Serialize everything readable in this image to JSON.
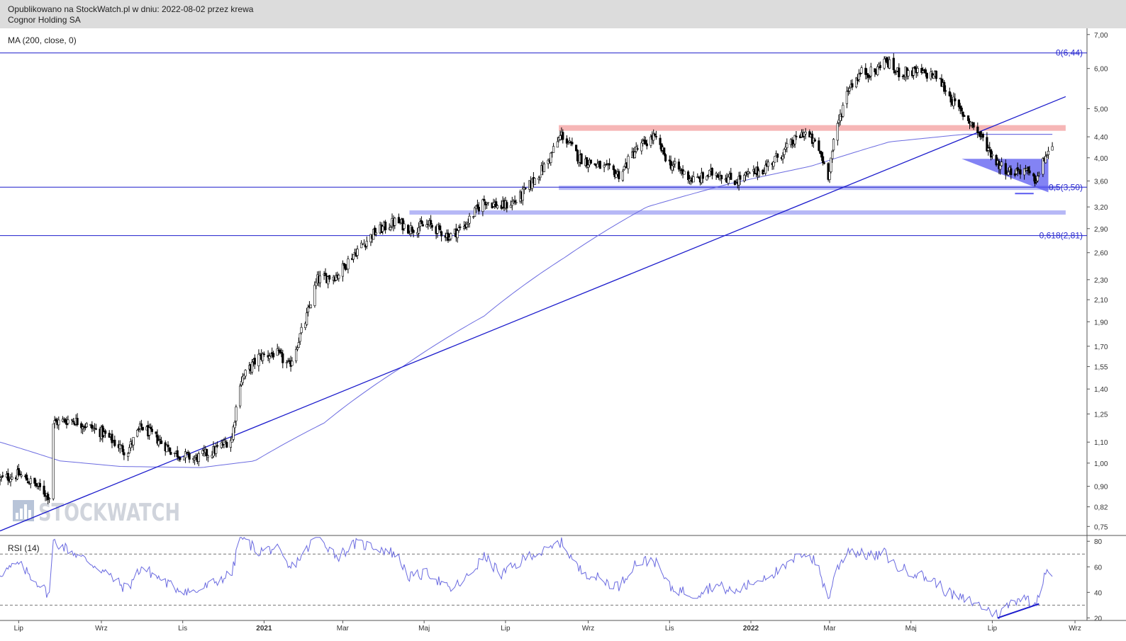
{
  "header": {
    "published": "Opublikowano na StockWatch.pl w dniu: 2022-08-02 przez krewa",
    "company": "Cognor Holding SA"
  },
  "watermark": "STOCKWATCH",
  "colors": {
    "candles": "#000000",
    "ma": "#6b6be0",
    "trend": "#1c1ccc",
    "fib": "#1c1ccc",
    "resistance_band": "#f4a9a9",
    "support_band": "#a9acf4",
    "triangle": "#5a5af0",
    "rsi": "#6b6be0"
  },
  "chart_data": [
    {
      "type": "candlestick",
      "title": "",
      "indicator_label": "MA (200, close, 0)",
      "y_scale": "log",
      "ylim": [
        0.72,
        7.2
      ],
      "y_ticks": [
        "7,00",
        "6,00",
        "5,00",
        "4,40",
        "4,00",
        "3,60",
        "3,20",
        "2,90",
        "2,60",
        "2,30",
        "2,10",
        "1,90",
        "1,70",
        "1,55",
        "1,40",
        "1,25",
        "1,10",
        "1,00",
        "0,90",
        "0,82",
        "0,75"
      ],
      "x_ticks": [
        "Lip",
        "Wrz",
        "Lis",
        "2021",
        "Mar",
        "Maj",
        "Lip",
        "Wrz",
        "Lis",
        "2022",
        "Mar",
        "Maj",
        "Lip",
        "Wrz"
      ],
      "x_range": [
        "2020-06-17",
        "2022-09-10"
      ],
      "price_anchors": [
        [
          "2020-06-17",
          0.93
        ],
        [
          "2020-07-01",
          0.95
        ],
        [
          "2020-07-15",
          0.9
        ],
        [
          "2020-07-24",
          0.86
        ],
        [
          "2020-07-27",
          1.2
        ],
        [
          "2020-08-10",
          1.22
        ],
        [
          "2020-09-01",
          1.15
        ],
        [
          "2020-09-20",
          1.05
        ],
        [
          "2020-10-01",
          1.18
        ],
        [
          "2020-10-25",
          1.05
        ],
        [
          "2020-11-10",
          1.02
        ],
        [
          "2020-11-25",
          1.06
        ],
        [
          "2020-12-08",
          1.12
        ],
        [
          "2020-12-14",
          1.45
        ],
        [
          "2020-12-28",
          1.62
        ],
        [
          "2021-01-10",
          1.65
        ],
        [
          "2021-01-20",
          1.55
        ],
        [
          "2021-02-01",
          1.9
        ],
        [
          "2021-02-10",
          2.3
        ],
        [
          "2021-02-25",
          2.35
        ],
        [
          "2021-03-10",
          2.6
        ],
        [
          "2021-03-25",
          2.85
        ],
        [
          "2021-04-10",
          3.0
        ],
        [
          "2021-04-20",
          2.9
        ],
        [
          "2021-05-05",
          2.95
        ],
        [
          "2021-05-20",
          2.8
        ],
        [
          "2021-06-01",
          2.95
        ],
        [
          "2021-06-15",
          3.3
        ],
        [
          "2021-06-28",
          3.2
        ],
        [
          "2021-07-10",
          3.3
        ],
        [
          "2021-07-20",
          3.55
        ],
        [
          "2021-08-01",
          3.9
        ],
        [
          "2021-08-12",
          4.45
        ],
        [
          "2021-08-25",
          4.0
        ],
        [
          "2021-09-15",
          3.8
        ],
        [
          "2021-09-25",
          3.7
        ],
        [
          "2021-10-05",
          4.1
        ],
        [
          "2021-10-20",
          4.4
        ],
        [
          "2021-11-01",
          3.9
        ],
        [
          "2021-11-20",
          3.6
        ],
        [
          "2021-12-05",
          3.75
        ],
        [
          "2021-12-20",
          3.6
        ],
        [
          "2022-01-10",
          3.8
        ],
        [
          "2022-01-25",
          4.1
        ],
        [
          "2022-02-10",
          4.5
        ],
        [
          "2022-02-20",
          4.2
        ],
        [
          "2022-02-28",
          3.7
        ],
        [
          "2022-03-05",
          4.4
        ],
        [
          "2022-03-15",
          5.5
        ],
        [
          "2022-03-25",
          5.9
        ],
        [
          "2022-04-05",
          5.9
        ],
        [
          "2022-04-10",
          6.3
        ],
        [
          "2022-04-20",
          5.9
        ],
        [
          "2022-05-05",
          5.9
        ],
        [
          "2022-05-20",
          5.8
        ],
        [
          "2022-05-28",
          5.4
        ],
        [
          "2022-06-05",
          5.0
        ],
        [
          "2022-06-15",
          4.7
        ],
        [
          "2022-06-25",
          4.3
        ],
        [
          "2022-07-05",
          3.9
        ],
        [
          "2022-07-15",
          3.75
        ],
        [
          "2022-07-25",
          3.8
        ],
        [
          "2022-08-01",
          3.6
        ],
        [
          "2022-08-05",
          3.7
        ],
        [
          "2022-08-10",
          4.05
        ],
        [
          "2022-08-15",
          4.15
        ]
      ],
      "ma200_anchors": [
        [
          "2020-06-17",
          1.1
        ],
        [
          "2020-08-01",
          1.01
        ],
        [
          "2020-09-15",
          0.985
        ],
        [
          "2020-11-15",
          0.98
        ],
        [
          "2020-12-25",
          1.01
        ],
        [
          "2021-02-15",
          1.2
        ],
        [
          "2021-04-15",
          1.55
        ],
        [
          "2021-06-15",
          1.95
        ],
        [
          "2021-08-15",
          2.55
        ],
        [
          "2021-10-15",
          3.2
        ],
        [
          "2021-12-15",
          3.55
        ],
        [
          "2022-02-15",
          3.85
        ],
        [
          "2022-04-15",
          4.3
        ],
        [
          "2022-06-10",
          4.45
        ],
        [
          "2022-08-15",
          4.45
        ]
      ],
      "horizontal_lines": [
        {
          "label": "0(6,44)",
          "value": 6.44
        },
        {
          "label": "0,5(3,50)",
          "value": 3.5
        },
        {
          "label": "0,618(2,81)",
          "value": 2.81
        }
      ],
      "resistance_zone": {
        "from": "2021-08-10",
        "to": "2022-08-25",
        "value": 4.58
      },
      "support_zones": [
        {
          "from": "2021-08-10",
          "to": "2022-08-20",
          "value": 3.49
        },
        {
          "from": "2021-04-20",
          "to": "2022-08-25",
          "value": 3.12
        }
      ],
      "trendline": {
        "start": [
          "2020-06-17",
          0.735
        ],
        "end": [
          "2022-08-25",
          5.28
        ]
      },
      "ma_level_line": {
        "from": "2022-06-12",
        "to": "2022-08-15",
        "value": 4.45
      },
      "triangle": {
        "points": [
          [
            "2022-06-08",
            3.98
          ],
          [
            "2022-08-12",
            3.98
          ],
          [
            "2022-08-12",
            3.42
          ]
        ]
      },
      "flag_tail": {
        "from": "2022-07-18",
        "to": "2022-08-01",
        "value": 3.4
      }
    },
    {
      "type": "line",
      "indicator_label": "RSI (14)",
      "ylim": [
        18,
        84
      ],
      "y_ticks": [
        "80",
        "60",
        "40",
        "20"
      ],
      "reference_levels": [
        70,
        30
      ],
      "rsi_anchors": [
        [
          "2020-06-17",
          55
        ],
        [
          "2020-07-01",
          62
        ],
        [
          "2020-07-15",
          48
        ],
        [
          "2020-07-24",
          38
        ],
        [
          "2020-07-27",
          80
        ],
        [
          "2020-08-10",
          72
        ],
        [
          "2020-09-01",
          58
        ],
        [
          "2020-09-20",
          42
        ],
        [
          "2020-10-01",
          60
        ],
        [
          "2020-10-25",
          44
        ],
        [
          "2020-11-10",
          40
        ],
        [
          "2020-11-25",
          48
        ],
        [
          "2020-12-08",
          55
        ],
        [
          "2020-12-14",
          84
        ],
        [
          "2020-12-28",
          72
        ],
        [
          "2021-01-10",
          75
        ],
        [
          "2021-01-20",
          58
        ],
        [
          "2021-02-01",
          72
        ],
        [
          "2021-02-10",
          85
        ],
        [
          "2021-02-25",
          68
        ],
        [
          "2021-03-10",
          78
        ],
        [
          "2021-03-25",
          76
        ],
        [
          "2021-04-10",
          70
        ],
        [
          "2021-04-20",
          52
        ],
        [
          "2021-05-05",
          55
        ],
        [
          "2021-05-20",
          42
        ],
        [
          "2021-06-01",
          50
        ],
        [
          "2021-06-15",
          68
        ],
        [
          "2021-06-28",
          54
        ],
        [
          "2021-07-10",
          62
        ],
        [
          "2021-07-20",
          70
        ],
        [
          "2021-08-01",
          72
        ],
        [
          "2021-08-12",
          80
        ],
        [
          "2021-08-25",
          58
        ],
        [
          "2021-09-15",
          48
        ],
        [
          "2021-09-25",
          45
        ],
        [
          "2021-10-05",
          62
        ],
        [
          "2021-10-20",
          66
        ],
        [
          "2021-11-01",
          44
        ],
        [
          "2021-11-20",
          38
        ],
        [
          "2021-12-05",
          46
        ],
        [
          "2021-12-20",
          40
        ],
        [
          "2022-01-10",
          52
        ],
        [
          "2022-01-25",
          58
        ],
        [
          "2022-02-10",
          72
        ],
        [
          "2022-02-20",
          62
        ],
        [
          "2022-02-28",
          34
        ],
        [
          "2022-03-05",
          55
        ],
        [
          "2022-03-15",
          74
        ],
        [
          "2022-03-25",
          70
        ],
        [
          "2022-04-05",
          68
        ],
        [
          "2022-04-10",
          72
        ],
        [
          "2022-04-20",
          60
        ],
        [
          "2022-05-05",
          55
        ],
        [
          "2022-05-20",
          48
        ],
        [
          "2022-05-28",
          40
        ],
        [
          "2022-06-05",
          36
        ],
        [
          "2022-06-15",
          33
        ],
        [
          "2022-06-25",
          28
        ],
        [
          "2022-07-05",
          22
        ],
        [
          "2022-07-15",
          32
        ],
        [
          "2022-07-25",
          38
        ],
        [
          "2022-08-01",
          28
        ],
        [
          "2022-08-05",
          40
        ],
        [
          "2022-08-10",
          58
        ],
        [
          "2022-08-15",
          56
        ]
      ],
      "divergence_line": {
        "start": [
          "2022-07-05",
          20
        ],
        "end": [
          "2022-08-05",
          31
        ]
      }
    }
  ]
}
